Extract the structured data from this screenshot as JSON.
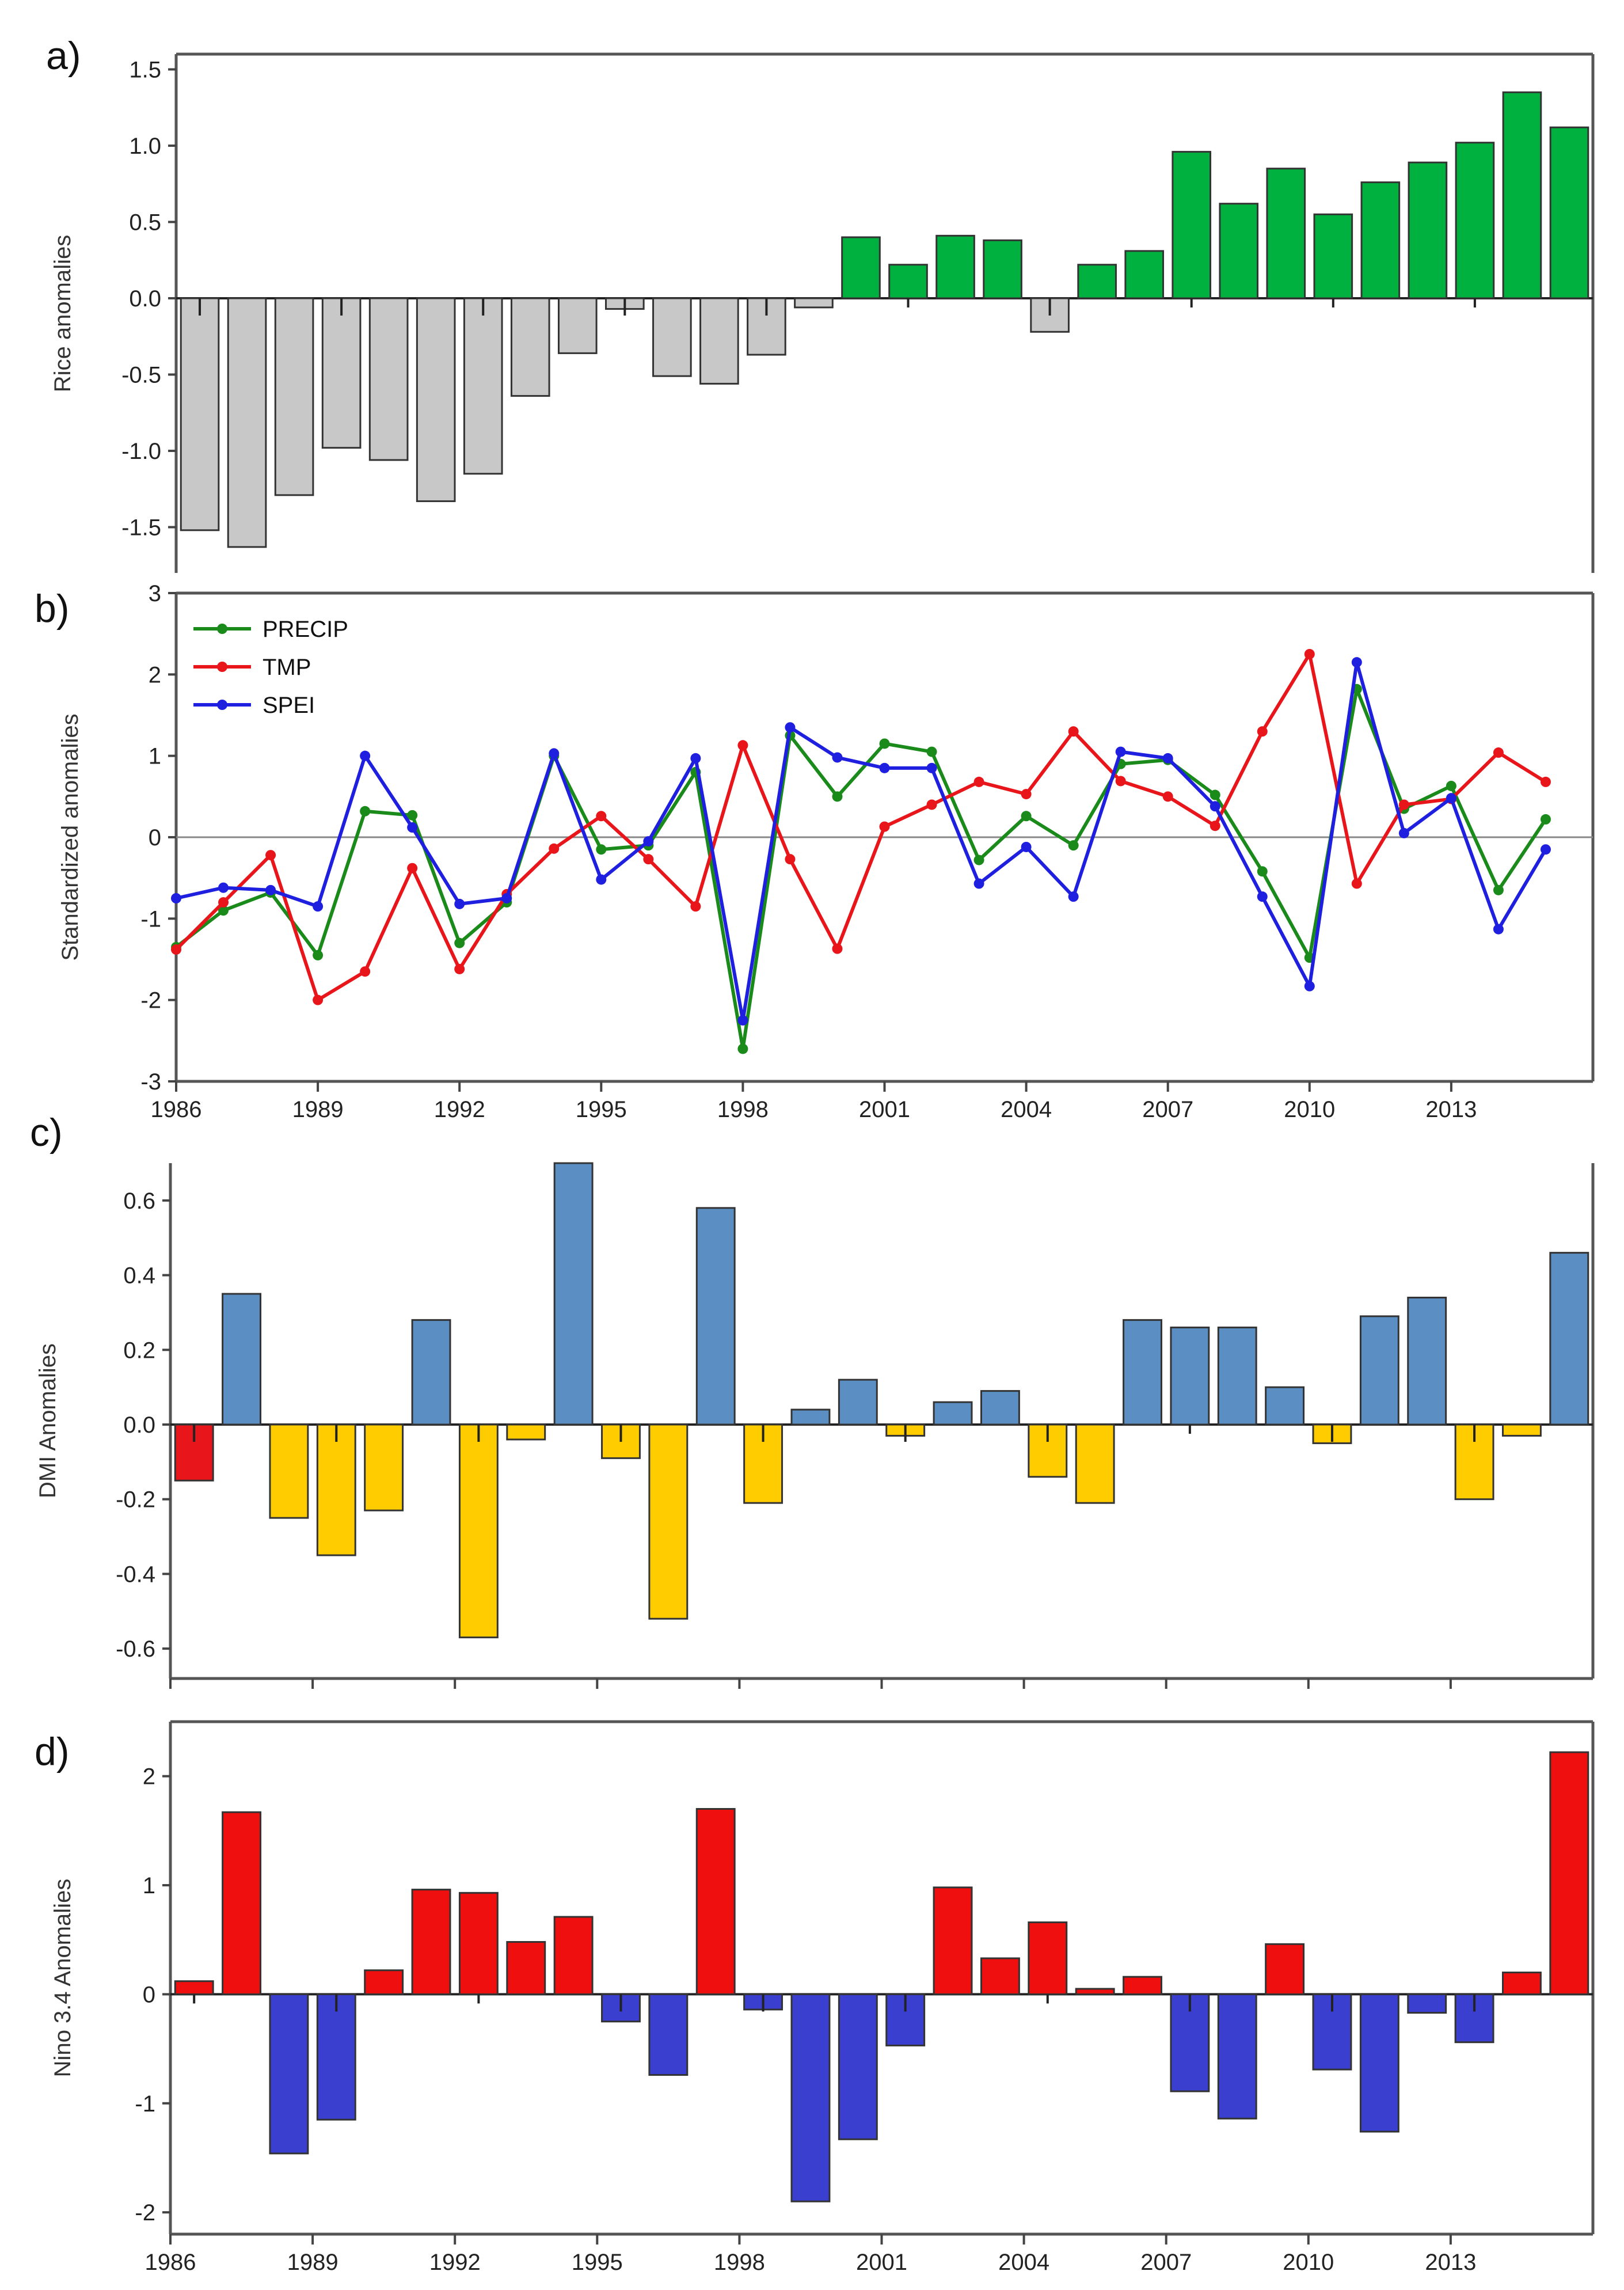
{
  "chart_data": [
    {
      "id": "a",
      "panel_label": "a)",
      "type": "bar",
      "ylabel": "Rice anomalies",
      "xlabel": "",
      "ylim": [
        -1.8,
        1.6
      ],
      "yticks": [
        -1.5,
        -1.0,
        -0.5,
        0.0,
        0.5,
        1.0,
        1.5
      ],
      "ytick_labels": [
        "-1.5",
        "-1.0",
        "-0.5",
        "0.0",
        "0.5",
        "1.0",
        "1.5"
      ],
      "x": [
        1986,
        1987,
        1988,
        1989,
        1990,
        1991,
        1992,
        1993,
        1994,
        1995,
        1996,
        1997,
        1998,
        1999,
        2000,
        2001,
        2002,
        2003,
        2004,
        2005,
        2006,
        2007,
        2008,
        2009,
        2010,
        2011,
        2012,
        2013,
        2014,
        2015
      ],
      "values": [
        -1.52,
        -1.63,
        -1.29,
        -0.98,
        -1.06,
        -1.33,
        -1.15,
        -0.64,
        -0.36,
        -0.07,
        -0.51,
        -0.56,
        -0.37,
        -0.06,
        0.4,
        0.22,
        0.41,
        0.38,
        -0.22,
        0.22,
        0.31,
        0.96,
        0.62,
        0.85,
        0.55,
        0.76,
        0.89,
        1.02,
        1.35,
        1.12
      ],
      "colors": {
        "positive": "#00b140",
        "negative": "#c8c8c8"
      }
    },
    {
      "id": "b",
      "panel_label": "b)",
      "type": "line",
      "ylabel": "Standardized anomalies",
      "xlabel": "",
      "ylim": [
        -3,
        3
      ],
      "yticks": [
        -3,
        -2,
        -1,
        0,
        1,
        2,
        3
      ],
      "ytick_labels": [
        "-3",
        "-2",
        "-1",
        "0",
        "1",
        "2",
        "3"
      ],
      "x": [
        1986,
        1987,
        1988,
        1989,
        1990,
        1991,
        1992,
        1993,
        1994,
        1995,
        1996,
        1997,
        1998,
        1999,
        2000,
        2001,
        2002,
        2003,
        2004,
        2005,
        2006,
        2007,
        2008,
        2009,
        2010,
        2011,
        2012,
        2013,
        2014,
        2015
      ],
      "xticks": [
        1986,
        1989,
        1992,
        1995,
        1998,
        2001,
        2004,
        2007,
        2010,
        2013
      ],
      "xtick_labels": [
        "1986",
        "1989",
        "1992",
        "1995",
        "1998",
        "2001",
        "2004",
        "2007",
        "2010",
        "2013"
      ],
      "legend_position": "top-left",
      "series": [
        {
          "name": "PRECIP",
          "color": "#1a8a1a",
          "values": [
            -1.35,
            -0.9,
            -0.68,
            -1.45,
            0.32,
            0.27,
            -1.3,
            -0.8,
            1.0,
            -0.15,
            -0.1,
            0.8,
            -2.6,
            1.25,
            0.5,
            1.15,
            1.05,
            -0.28,
            0.26,
            -0.1,
            0.9,
            0.95,
            0.52,
            -0.42,
            -1.48,
            1.82,
            0.35,
            0.63,
            -0.65,
            0.22
          ]
        },
        {
          "name": "TMP",
          "color": "#e8161b",
          "values": [
            -1.38,
            -0.8,
            -0.22,
            -2.0,
            -1.65,
            -0.38,
            -1.62,
            -0.7,
            -0.14,
            0.26,
            -0.27,
            -0.85,
            1.13,
            -0.27,
            -1.37,
            0.13,
            0.4,
            0.68,
            0.53,
            1.3,
            0.69,
            0.5,
            0.14,
            1.3,
            2.25,
            -0.57,
            0.4,
            0.47,
            1.04,
            0.68
          ]
        },
        {
          "name": "SPEI",
          "color": "#1f1fe0",
          "values": [
            -0.75,
            -0.62,
            -0.65,
            -0.85,
            1.0,
            0.12,
            -0.82,
            -0.75,
            1.03,
            -0.52,
            -0.05,
            0.97,
            -2.25,
            1.35,
            0.98,
            0.85,
            0.85,
            -0.57,
            -0.12,
            -0.73,
            1.05,
            0.97,
            0.38,
            -0.73,
            -1.83,
            2.15,
            0.05,
            0.48,
            -1.13,
            -0.15
          ]
        }
      ]
    },
    {
      "id": "c",
      "panel_label": "c)",
      "type": "bar",
      "ylabel": "DMI Anomalies",
      "xlabel": "",
      "ylim": [
        -0.68,
        0.7
      ],
      "yticks": [
        -0.6,
        -0.4,
        -0.2,
        0.0,
        0.2,
        0.4,
        0.6
      ],
      "ytick_labels": [
        "-0.6",
        "-0.4",
        "-0.2",
        "0.0",
        "0.2",
        "0.4",
        "0.6"
      ],
      "x": [
        1986,
        1987,
        1988,
        1989,
        1990,
        1991,
        1992,
        1993,
        1994,
        1995,
        1996,
        1997,
        1998,
        1999,
        2000,
        2001,
        2002,
        2003,
        2004,
        2005,
        2006,
        2007,
        2008,
        2009,
        2010,
        2011,
        2012,
        2013,
        2014,
        2015
      ],
      "values": [
        -0.15,
        0.35,
        -0.25,
        -0.35,
        -0.23,
        0.28,
        -0.57,
        -0.04,
        0.7,
        -0.09,
        -0.52,
        0.58,
        -0.21,
        0.04,
        0.12,
        -0.03,
        0.06,
        0.09,
        -0.14,
        -0.21,
        0.28,
        0.26,
        0.26,
        0.1,
        -0.05,
        0.29,
        0.34,
        -0.2,
        -0.03,
        0.46
      ],
      "colors": {
        "positive": "#5b8fc4",
        "negative": "#ffcc00",
        "first_year": "#e8161b"
      }
    },
    {
      "id": "d",
      "panel_label": "d)",
      "type": "bar",
      "ylabel": "Nino 3.4 Anomalies",
      "xlabel": "",
      "ylim": [
        -2.2,
        2.5
      ],
      "yticks": [
        -2,
        -1,
        0,
        1,
        2
      ],
      "ytick_labels": [
        "-2",
        "-1",
        "0",
        "1",
        "2"
      ],
      "x": [
        1986,
        1987,
        1988,
        1989,
        1990,
        1991,
        1992,
        1993,
        1994,
        1995,
        1996,
        1997,
        1998,
        1999,
        2000,
        2001,
        2002,
        2003,
        2004,
        2005,
        2006,
        2007,
        2008,
        2009,
        2010,
        2011,
        2012,
        2013,
        2014,
        2015
      ],
      "xticks": [
        1986,
        1989,
        1992,
        1995,
        1998,
        2001,
        2004,
        2007,
        2010,
        2013
      ],
      "xtick_labels": [
        "1986",
        "1989",
        "1992",
        "1995",
        "1998",
        "2001",
        "2004",
        "2007",
        "2010",
        "2013"
      ],
      "values": [
        0.12,
        1.67,
        -1.46,
        -1.15,
        0.22,
        0.96,
        0.93,
        0.48,
        0.71,
        -0.25,
        -0.74,
        1.7,
        -0.14,
        -1.9,
        -1.33,
        -0.47,
        0.98,
        0.33,
        0.66,
        0.05,
        0.16,
        -0.89,
        -1.14,
        0.46,
        -0.69,
        -1.26,
        -0.17,
        -0.44,
        0.2,
        2.22
      ],
      "colors": {
        "positive": "#f00f0f",
        "negative": "#3a3fcf"
      }
    }
  ]
}
